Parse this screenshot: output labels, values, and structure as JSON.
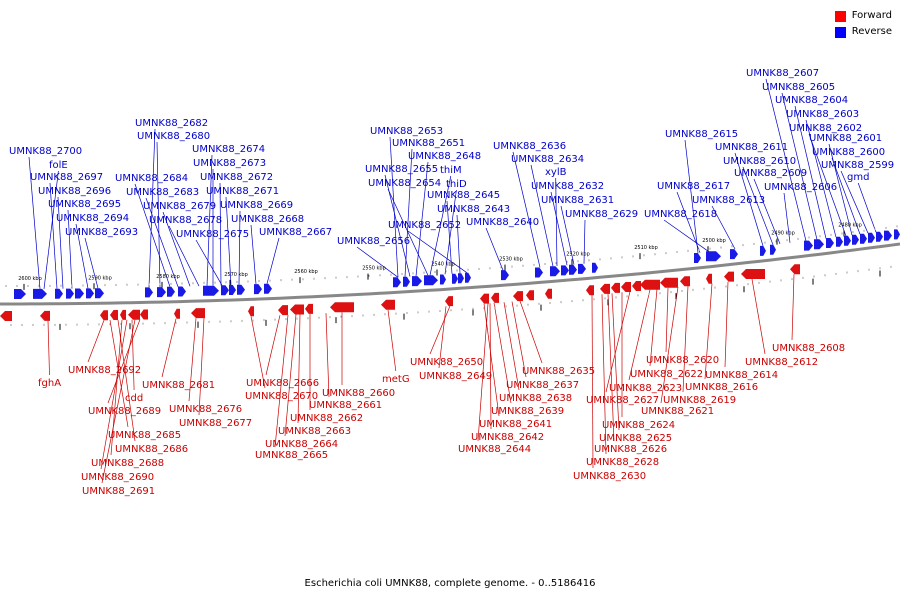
{
  "legend": {
    "forward_label": "Forward",
    "reverse_label": "Reverse",
    "forward_color": "#ff0000",
    "reverse_color": "#0000ff"
  },
  "caption": "Escherichia coli UMNK88, complete genome. - 0..5186416",
  "colors": {
    "backbone": "#888888",
    "forward": "#dd1111",
    "reverse": "#1a1ae6",
    "forward_label": "#cc0000",
    "reverse_label": "#0000cc"
  },
  "scale_labels": [
    "2600 kbp",
    "2590 kbp",
    "2580 kbp",
    "2570 kbp",
    "2560 kbp",
    "2550 kbp",
    "2540 kbp",
    "2530 kbp",
    "2520 kbp",
    "2510 kbp",
    "2500 kbp",
    "2490 kbp",
    "2480 kbp"
  ],
  "reverse_labels": [
    "UMNK88_2700",
    "folE",
    "UMNK88_2697",
    "UMNK88_2696",
    "UMNK88_2695",
    "UMNK88_2694",
    "UMNK88_2693",
    "UMNK88_2682",
    "UMNK88_2680",
    "UMNK88_2684",
    "UMNK88_2683",
    "UMNK88_2679",
    "UMNK88_2678",
    "UMNK88_2674",
    "UMNK88_2673",
    "UMNK88_2672",
    "UMNK88_2671",
    "UMNK88_2669",
    "UMNK88_2675",
    "UMNK88_2668",
    "UMNK88_2667",
    "UMNK88_2653",
    "UMNK88_2651",
    "UMNK88_2648",
    "UMNK88_2655",
    "thiM",
    "UMNK88_2654",
    "thiD",
    "UMNK88_2645",
    "UMNK88_2643",
    "UMNK88_2652",
    "UMNK88_2640",
    "UMNK88_2656",
    "UMNK88_2636",
    "UMNK88_2634",
    "xylB",
    "UMNK88_2632",
    "UMNK88_2631",
    "UMNK88_2629",
    "UMNK88_2615",
    "UMNK88_2617",
    "UMNK88_2618",
    "UMNK88_2613",
    "UMNK88_2611",
    "UMNK88_2610",
    "UMNK88_2609",
    "UMNK88_2606",
    "UMNK88_2607",
    "UMNK88_2605",
    "UMNK88_2604",
    "UMNK88_2603",
    "UMNK88_2602",
    "UMNK88_2601",
    "UMNK88_2600",
    "UMNK88_2599",
    "gmd"
  ],
  "forward_labels": [
    "fghA",
    "UMNK88_2692",
    "cdd",
    "UMNK88_2689",
    "UMNK88_2685",
    "UMNK88_2686",
    "UMNK88_2688",
    "UMNK88_2690",
    "UMNK88_2691",
    "UMNK88_2681",
    "UMNK88_2676",
    "UMNK88_2677",
    "UMNK88_2670",
    "UMNK88_2666",
    "UMNK88_2660",
    "UMNK88_2661",
    "UMNK88_2662",
    "UMNK88_2663",
    "UMNK88_2664",
    "UMNK88_2665",
    "metG",
    "UMNK88_2650",
    "UMNK88_2649",
    "UMNK88_2635",
    "UMNK88_2637",
    "UMNK88_2638",
    "UMNK88_2639",
    "UMNK88_2641",
    "UMNK88_2642",
    "UMNK88_2644",
    "UMNK88_2620",
    "UMNK88_2622",
    "UMNK88_2623",
    "UMNK88_2627",
    "UMNK88_2624",
    "UMNK88_2625",
    "UMNK88_2626",
    "UMNK88_2628",
    "UMNK88_2630",
    "UMNK88_2621",
    "UMNK88_2619",
    "UMNK88_2616",
    "UMNK88_2614",
    "UMNK88_2612",
    "UMNK88_2608"
  ]
}
